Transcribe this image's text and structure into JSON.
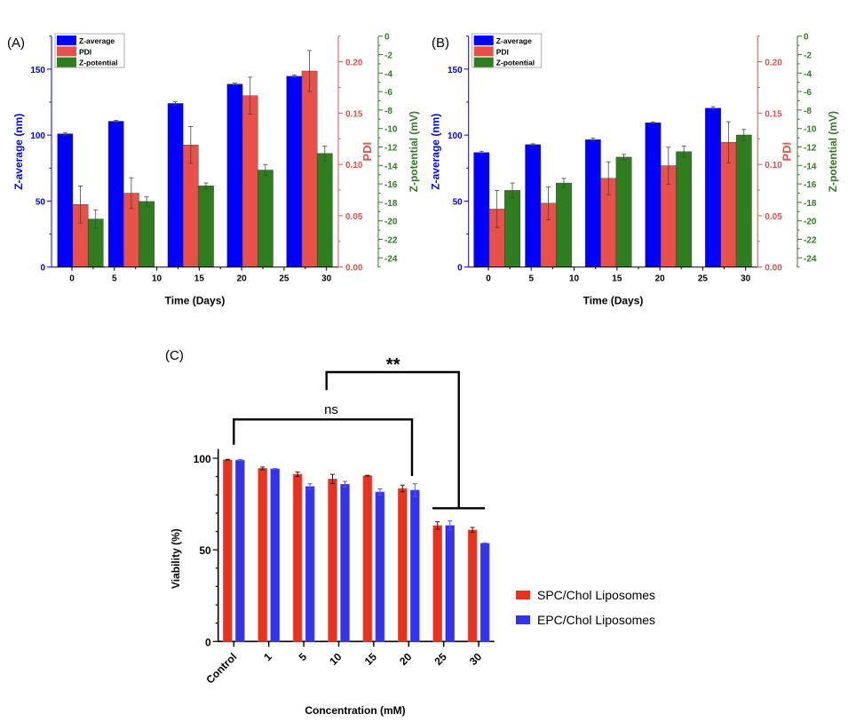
{
  "chart_data": [
    {
      "panel_label": "(A)",
      "type": "bar",
      "xlabel": "Time (Days)",
      "x_ticks": [
        0,
        5,
        10,
        15,
        20,
        25,
        30
      ],
      "group_centers_days": [
        1,
        7,
        14,
        21,
        28
      ],
      "axes": {
        "z_average": {
          "label": "Z-average (nm)",
          "range": [
            0,
            175
          ],
          "ticks": [
            0,
            50,
            100,
            150
          ],
          "color": "#0000ff"
        },
        "pdi": {
          "label": "PDI",
          "range": [
            0,
            0.225
          ],
          "ticks": [
            "0.00",
            "0.05",
            "0.10",
            "0.15",
            "0.20"
          ],
          "color": "#e8504a"
        },
        "z_potential": {
          "label": "Z-potential (mV)",
          "range": [
            -25,
            0
          ],
          "ticks": [
            0,
            -2,
            -4,
            -6,
            -8,
            -10,
            -12,
            -14,
            -16,
            -18,
            -20,
            -22,
            -24
          ],
          "color": "#2e7d1e"
        }
      },
      "legend": [
        "Z-average",
        "PDI",
        "Z-potential"
      ],
      "legend_position": "top-left",
      "series": [
        {
          "name": "Z-average",
          "axis": "z_average",
          "values": [
            101,
            110.5,
            124,
            138.6,
            144.6
          ],
          "errors": [
            1,
            0.6,
            1.2,
            0.8,
            1
          ]
        },
        {
          "name": "PDI",
          "axis": "pdi",
          "values": [
            0.061,
            0.072,
            0.119,
            0.167,
            0.191
          ],
          "errors": [
            0.018,
            0.015,
            0.018,
            0.018,
            0.02
          ]
        },
        {
          "name": "Z-potential",
          "axis": "z_potential",
          "values": [
            -19.8,
            -17.9,
            -16.2,
            -14.5,
            -12.7
          ],
          "errors": [
            1.0,
            0.5,
            0.3,
            0.6,
            0.8
          ]
        }
      ]
    },
    {
      "panel_label": "(B)",
      "type": "bar",
      "xlabel": "Time (Days)",
      "x_ticks": [
        0,
        5,
        10,
        15,
        20,
        25,
        30
      ],
      "group_centers_days": [
        1,
        7,
        14,
        21,
        28
      ],
      "axes": {
        "z_average": {
          "label": "Z-average (nm)",
          "range": [
            0,
            175
          ],
          "ticks": [
            0,
            50,
            100,
            150
          ],
          "color": "#0000ff"
        },
        "pdi": {
          "label": "PDI",
          "range": [
            0,
            0.225
          ],
          "ticks": [
            "0.00",
            "0.05",
            "0.10",
            "0.15",
            "0.20"
          ],
          "color": "#e8504a"
        },
        "z_potential": {
          "label": "Z-potential (mV)",
          "range": [
            -25,
            0
          ],
          "ticks": [
            0,
            -2,
            -4,
            -6,
            -8,
            -10,
            -12,
            -14,
            -16,
            -18,
            -20,
            -22,
            -24
          ],
          "color": "#2e7d1e"
        }
      },
      "legend": [
        "Z-average",
        "PDI",
        "Z-potential"
      ],
      "legend_position": "top-left",
      "series": [
        {
          "name": "Z-average",
          "axis": "z_average",
          "values": [
            86.8,
            92.8,
            96.6,
            109.4,
            120.4
          ],
          "errors": [
            1,
            0.6,
            1.2,
            0.6,
            1.2
          ]
        },
        {
          "name": "PDI",
          "axis": "pdi",
          "values": [
            0.0565,
            0.0622,
            0.0865,
            0.0988,
            0.1216
          ],
          "errors": [
            0.018,
            0.016,
            0.016,
            0.018,
            0.02
          ]
        },
        {
          "name": "Z-potential",
          "axis": "z_potential",
          "values": [
            -16.7,
            -15.9,
            -13.1,
            -12.5,
            -10.7
          ],
          "errors": [
            0.8,
            0.5,
            0.3,
            0.6,
            0.6
          ]
        }
      ]
    },
    {
      "panel_label": "(C)",
      "type": "bar",
      "xlabel": "Concentration (mM)",
      "ylabel": "Viability (%)",
      "ylim": [
        0,
        100
      ],
      "y_ticks": [
        0,
        50,
        100
      ],
      "categories": [
        "Control",
        "1",
        "5",
        "10",
        "15",
        "20",
        "25",
        "30"
      ],
      "legend_position": "right",
      "series": [
        {
          "name": "SPC/Chol Liposomes",
          "color": "#e8321e",
          "values": [
            99.2,
            94.5,
            91.3,
            88.7,
            90.5,
            83.5,
            63.3,
            60.9
          ],
          "errors": [
            0.2,
            0.7,
            1.2,
            2.5,
            0.2,
            1.8,
            2.0,
            1.3
          ]
        },
        {
          "name": "EPC/Chol Liposomes",
          "color": "#3333ee",
          "values": [
            99.0,
            94.2,
            84.6,
            85.8,
            81.6,
            82.6,
            63.3,
            53.6
          ],
          "errors": [
            0.3,
            0.2,
            1.5,
            1.6,
            1.7,
            3.5,
            2.5,
            0.2
          ]
        }
      ],
      "annotations": [
        {
          "text": "ns",
          "from": "Control",
          "to": "20"
        },
        {
          "text": "**",
          "from": "15",
          "to": "25-30"
        }
      ]
    }
  ]
}
